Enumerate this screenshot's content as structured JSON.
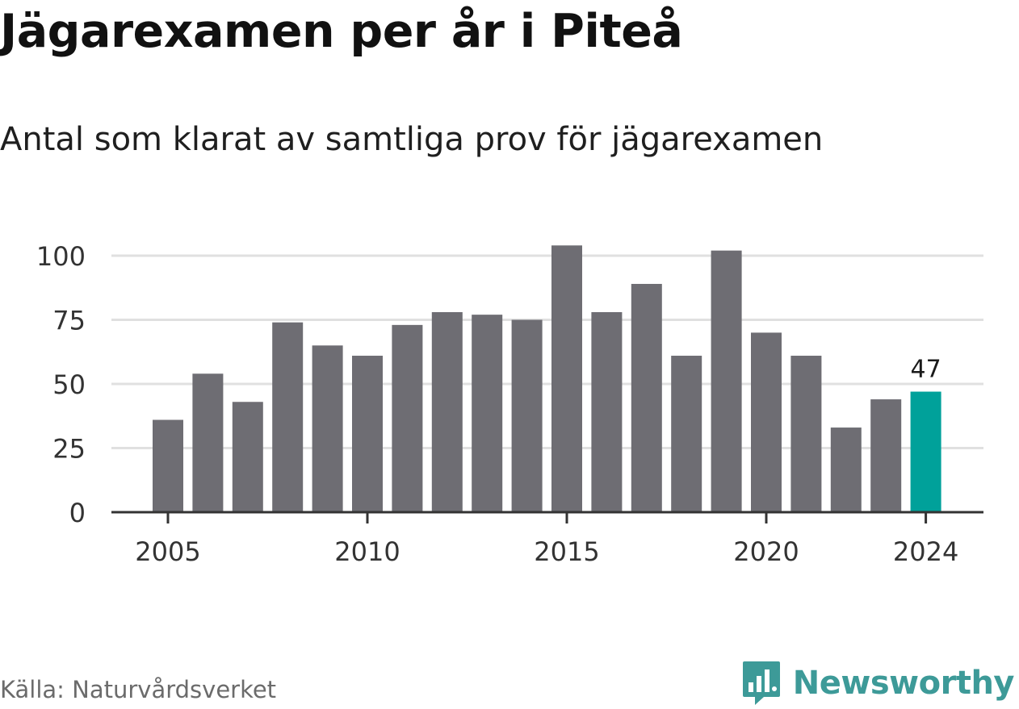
{
  "header": {
    "title": "Jägarexamen per år i Piteå",
    "subtitle": "Antal som klarat av samtliga prov för jägarexamen"
  },
  "footer": {
    "source": "Källa: Naturvårdsverket",
    "brand": "Newsworthy",
    "brand_icon": "bar-chart-speech-bubble-icon"
  },
  "colors": {
    "bar": "#6e6d73",
    "highlight": "#00a19a",
    "grid": "#e0e0e0",
    "axis": "#333333",
    "brand": "#3d9a98"
  },
  "chart_data": {
    "type": "bar",
    "title": "Jägarexamen per år i Piteå",
    "subtitle": "Antal som klarat av samtliga prov för jägarexamen",
    "categories": [
      2005,
      2006,
      2007,
      2008,
      2009,
      2010,
      2011,
      2012,
      2013,
      2014,
      2015,
      2016,
      2017,
      2018,
      2019,
      2020,
      2021,
      2022,
      2023,
      2024
    ],
    "values": [
      36,
      54,
      43,
      74,
      65,
      61,
      73,
      78,
      77,
      75,
      104,
      78,
      89,
      61,
      102,
      70,
      61,
      33,
      44,
      47
    ],
    "x_tick_labels": [
      "2005",
      "2010",
      "2015",
      "2020",
      "2024"
    ],
    "y_ticks": [
      0,
      25,
      50,
      75,
      100
    ],
    "ylim": [
      0,
      105
    ],
    "grid": true,
    "highlight_category": 2024,
    "data_labels": [
      {
        "category": 2024,
        "text": "47"
      }
    ],
    "xlabel": "",
    "ylabel": ""
  }
}
